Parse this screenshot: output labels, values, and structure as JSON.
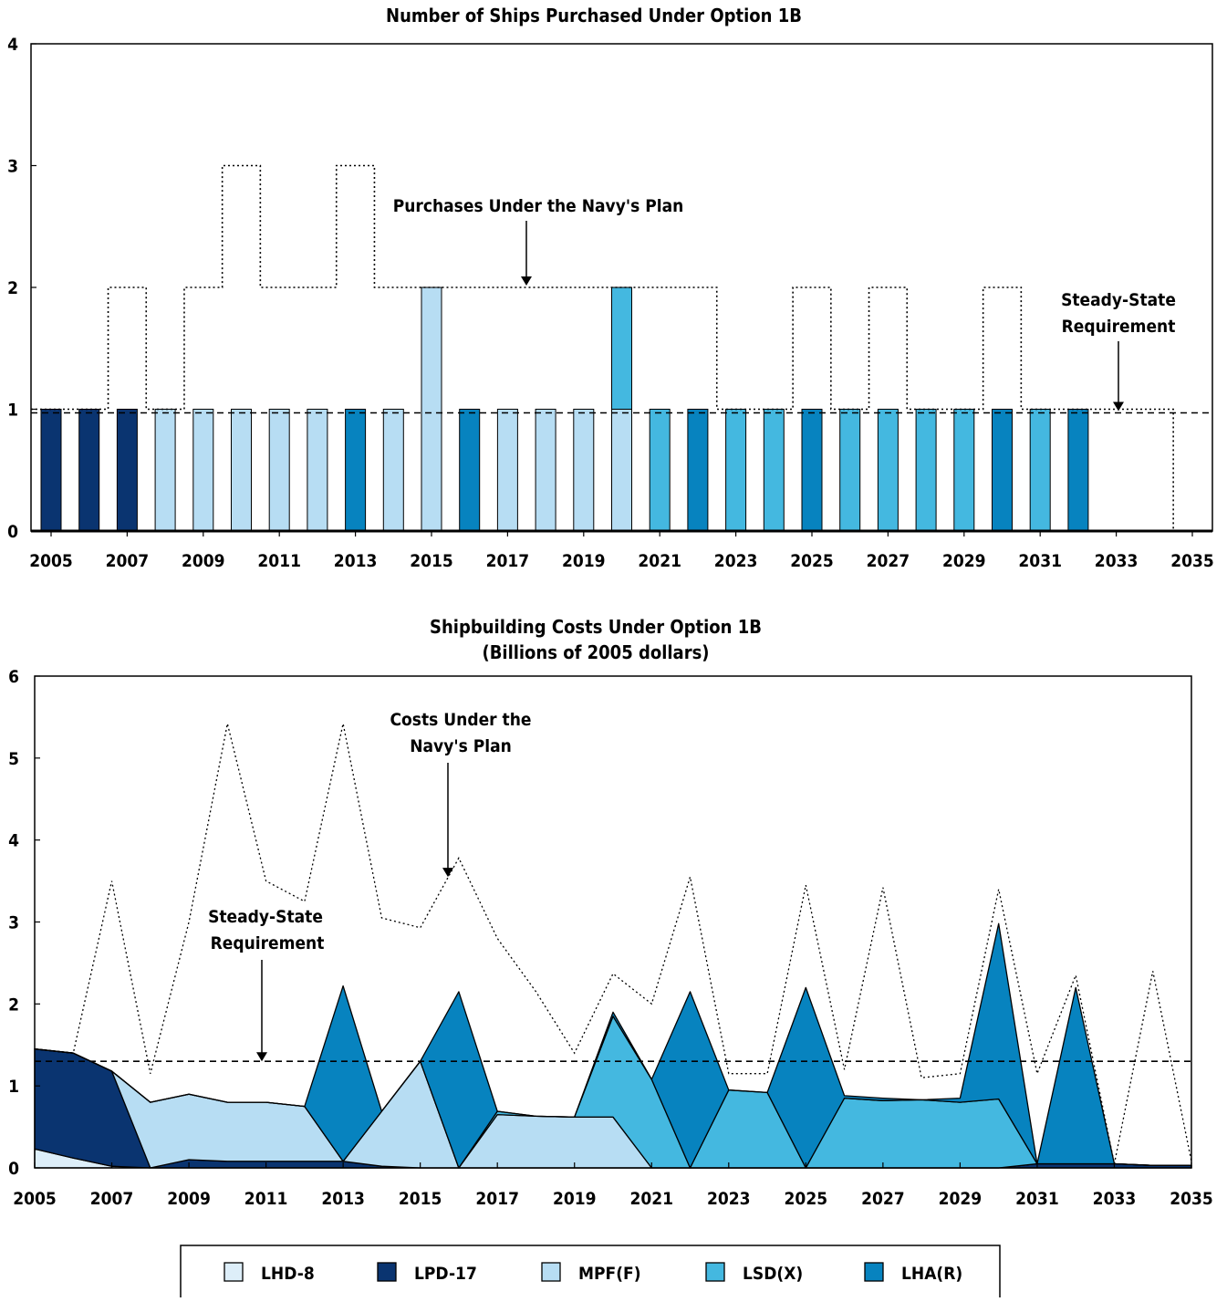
{
  "colors": {
    "LHD-8": "#ddeef9",
    "LPD-17": "#0a3470",
    "MPF(F)": "#b7ddf3",
    "LSD(X)": "#44b8e0",
    "LHA(R)": "#0783bf"
  },
  "legend": [
    {
      "key": "LHD-8",
      "label": "LHD-8"
    },
    {
      "key": "LPD-17",
      "label": "LPD-17"
    },
    {
      "key": "MPF(F)",
      "label": "MPF(F)"
    },
    {
      "key": "LSD(X)",
      "label": "LSD(X)"
    },
    {
      "key": "LHA(R)",
      "label": "LHA(R)"
    }
  ],
  "chart_data": [
    {
      "type": "bar",
      "title": "Number of Ships Purchased Under Option 1B",
      "ylim": [
        0,
        4
      ],
      "yticks": [
        "0",
        "1",
        "2",
        "3",
        "4"
      ],
      "xlim": [
        2005,
        2035
      ],
      "xticks": [
        "2005",
        "2007",
        "2009",
        "2011",
        "2013",
        "2015",
        "2017",
        "2019",
        "2021",
        "2023",
        "2025",
        "2027",
        "2029",
        "2031",
        "2033",
        "2035"
      ],
      "bars": [
        {
          "year": 2005,
          "segments": [
            {
              "type": "LPD-17",
              "value": 1
            }
          ]
        },
        {
          "year": 2006,
          "segments": [
            {
              "type": "LPD-17",
              "value": 1
            }
          ]
        },
        {
          "year": 2007,
          "segments": [
            {
              "type": "LPD-17",
              "value": 1
            }
          ]
        },
        {
          "year": 2008,
          "segments": [
            {
              "type": "MPF(F)",
              "value": 1
            }
          ]
        },
        {
          "year": 2009,
          "segments": [
            {
              "type": "MPF(F)",
              "value": 1
            }
          ]
        },
        {
          "year": 2010,
          "segments": [
            {
              "type": "MPF(F)",
              "value": 1
            }
          ]
        },
        {
          "year": 2011,
          "segments": [
            {
              "type": "MPF(F)",
              "value": 1
            }
          ]
        },
        {
          "year": 2012,
          "segments": [
            {
              "type": "MPF(F)",
              "value": 1
            }
          ]
        },
        {
          "year": 2013,
          "segments": [
            {
              "type": "LHA(R)",
              "value": 1
            }
          ]
        },
        {
          "year": 2014,
          "segments": [
            {
              "type": "MPF(F)",
              "value": 1
            }
          ]
        },
        {
          "year": 2015,
          "segments": [
            {
              "type": "MPF(F)",
              "value": 2
            }
          ]
        },
        {
          "year": 2016,
          "segments": [
            {
              "type": "LHA(R)",
              "value": 1
            }
          ]
        },
        {
          "year": 2017,
          "segments": [
            {
              "type": "MPF(F)",
              "value": 1
            }
          ]
        },
        {
          "year": 2018,
          "segments": [
            {
              "type": "MPF(F)",
              "value": 1
            }
          ]
        },
        {
          "year": 2019,
          "segments": [
            {
              "type": "MPF(F)",
              "value": 1
            }
          ]
        },
        {
          "year": 2020,
          "segments": [
            {
              "type": "MPF(F)",
              "value": 1
            },
            {
              "type": "LSD(X)",
              "value": 1
            }
          ]
        },
        {
          "year": 2021,
          "segments": [
            {
              "type": "LSD(X)",
              "value": 1
            }
          ]
        },
        {
          "year": 2022,
          "segments": [
            {
              "type": "LHA(R)",
              "value": 1
            }
          ]
        },
        {
          "year": 2023,
          "segments": [
            {
              "type": "LSD(X)",
              "value": 1
            }
          ]
        },
        {
          "year": 2024,
          "segments": [
            {
              "type": "LSD(X)",
              "value": 1
            }
          ]
        },
        {
          "year": 2025,
          "segments": [
            {
              "type": "LHA(R)",
              "value": 1
            }
          ]
        },
        {
          "year": 2026,
          "segments": [
            {
              "type": "LSD(X)",
              "value": 1
            }
          ]
        },
        {
          "year": 2027,
          "segments": [
            {
              "type": "LSD(X)",
              "value": 1
            }
          ]
        },
        {
          "year": 2028,
          "segments": [
            {
              "type": "LSD(X)",
              "value": 1
            }
          ]
        },
        {
          "year": 2029,
          "segments": [
            {
              "type": "LSD(X)",
              "value": 1
            }
          ]
        },
        {
          "year": 2030,
          "segments": [
            {
              "type": "LHA(R)",
              "value": 1
            }
          ]
        },
        {
          "year": 2031,
          "segments": [
            {
              "type": "LSD(X)",
              "value": 1
            }
          ]
        },
        {
          "year": 2032,
          "segments": [
            {
              "type": "LHA(R)",
              "value": 1
            }
          ]
        }
      ],
      "navy_plan": {
        "years": [
          2005,
          2006,
          2007,
          2008,
          2009,
          2010,
          2011,
          2012,
          2013,
          2014,
          2015,
          2016,
          2017,
          2018,
          2019,
          2020,
          2021,
          2022,
          2023,
          2024,
          2025,
          2026,
          2027,
          2028,
          2029,
          2030,
          2031,
          2032,
          2033,
          2034,
          2035
        ],
        "values": [
          1,
          1,
          2,
          1,
          2,
          3,
          2,
          2,
          3,
          2,
          2,
          2,
          2,
          2,
          2,
          2,
          2,
          2,
          1,
          1,
          2,
          1,
          2,
          1,
          1,
          2,
          1,
          1,
          1,
          1,
          0
        ]
      },
      "steady_state": 0.97,
      "annotations": [
        {
          "text": "Purchases Under the Navy's Plan",
          "target_year": 2018.5,
          "target_value": 2
        },
        {
          "text": "Steady-State",
          "text2": "Requirement",
          "target_year": 2033.0,
          "target_value": 0.97
        }
      ]
    },
    {
      "type": "area",
      "title": "Shipbuilding Costs Under Option 1B",
      "subtitle": "(Billions of 2005 dollars)",
      "ylim": [
        0,
        6
      ],
      "yticks": [
        "0",
        "1",
        "2",
        "3",
        "4",
        "5",
        "6"
      ],
      "xlim": [
        2005,
        2035
      ],
      "xticks": [
        "2005",
        "2007",
        "2009",
        "2011",
        "2013",
        "2015",
        "2017",
        "2019",
        "2021",
        "2023",
        "2025",
        "2027",
        "2029",
        "2031",
        "2033",
        "2035"
      ],
      "x": [
        2005,
        2006,
        2007,
        2008,
        2009,
        2010,
        2011,
        2012,
        2013,
        2014,
        2015,
        2016,
        2017,
        2018,
        2019,
        2020,
        2021,
        2022,
        2023,
        2024,
        2025,
        2026,
        2027,
        2028,
        2029,
        2030,
        2031,
        2032,
        2033,
        2034,
        2035
      ],
      "series": [
        {
          "key": "LHD-8",
          "values": [
            0.23,
            0.12,
            0.02,
            0.0,
            0.0,
            0.0,
            0.0,
            0.0,
            0.0,
            0.0,
            0.0,
            0.0,
            0.0,
            0.0,
            0.0,
            0.0,
            0.0,
            0.0,
            0.0,
            0.0,
            0.0,
            0.0,
            0.0,
            0.0,
            0.0,
            0.0,
            0.0,
            0.0,
            0.0,
            0.0,
            0.0
          ]
        },
        {
          "key": "LPD-17",
          "values": [
            1.22,
            1.28,
            1.16,
            0.0,
            0.1,
            0.08,
            0.08,
            0.08,
            0.08,
            0.02,
            0.0,
            0.0,
            0.0,
            0.0,
            0.0,
            0.0,
            0.0,
            0.0,
            0.0,
            0.0,
            0.0,
            0.0,
            0.0,
            0.0,
            0.0,
            0.0,
            0.05,
            0.05,
            0.05,
            0.03,
            0.03
          ]
        },
        {
          "key": "MPF(F)",
          "values": [
            0.0,
            0.0,
            0.0,
            0.8,
            0.8,
            0.72,
            0.72,
            0.67,
            0.0,
            0.67,
            1.3,
            0.0,
            0.65,
            0.63,
            0.62,
            0.62,
            0.0,
            0.0,
            0.0,
            0.0,
            0.0,
            0.0,
            0.0,
            0.0,
            0.0,
            0.0,
            0.0,
            0.0,
            0.0,
            0.0,
            0.0
          ]
        },
        {
          "key": "LSD(X)",
          "values": [
            0.0,
            0.0,
            0.0,
            0.0,
            0.0,
            0.0,
            0.0,
            0.0,
            0.0,
            0.0,
            0.0,
            0.0,
            0.04,
            0.0,
            0.0,
            1.23,
            1.08,
            0.0,
            0.95,
            0.92,
            0.0,
            0.85,
            0.82,
            0.83,
            0.8,
            0.84,
            0.0,
            0.0,
            0.0,
            0.0,
            0.0
          ]
        },
        {
          "key": "LHA(R)",
          "values": [
            0.0,
            0.0,
            0.0,
            0.0,
            0.0,
            0.0,
            0.0,
            0.0,
            2.14,
            0.0,
            0.0,
            2.15,
            0.0,
            0.0,
            0.0,
            0.05,
            0.0,
            2.15,
            0.0,
            0.0,
            2.2,
            0.03,
            0.03,
            0.0,
            0.05,
            2.14,
            0.0,
            2.15,
            0.0,
            0.0,
            0.0
          ]
        }
      ],
      "navy_plan": {
        "values": [
          1.45,
          1.4,
          3.5,
          1.15,
          3.0,
          5.42,
          3.5,
          3.25,
          5.42,
          3.05,
          2.93,
          3.78,
          2.8,
          2.15,
          1.4,
          2.37,
          2.0,
          3.55,
          1.15,
          1.15,
          3.45,
          1.2,
          3.42,
          1.1,
          1.15,
          3.4,
          1.15,
          2.35,
          0.05,
          2.4,
          0.08
        ]
      },
      "steady_state": 1.3,
      "annotations": [
        {
          "text": "Costs Under the",
          "text2": "Navy's Plan",
          "target_year": 2016.7,
          "target_value": 3.55
        },
        {
          "text": "Steady-State",
          "text2": "Requirement",
          "target_year": 2011.0,
          "target_value": 1.3
        }
      ]
    }
  ]
}
